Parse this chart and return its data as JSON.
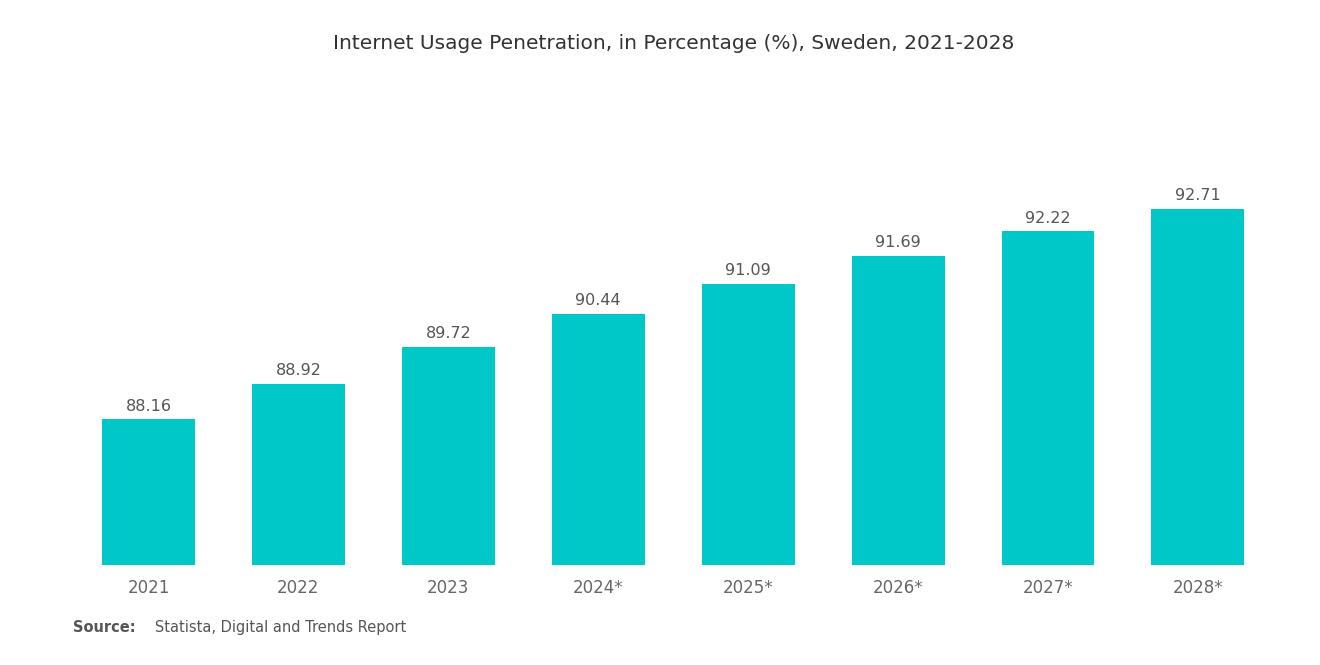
{
  "title": "Internet Usage Penetration, in Percentage (%), Sweden, 2021-2028",
  "categories": [
    "2021",
    "2022",
    "2023",
    "2024*",
    "2025*",
    "2026*",
    "2027*",
    "2028*"
  ],
  "values": [
    88.16,
    88.92,
    89.72,
    90.44,
    91.09,
    91.69,
    92.22,
    92.71
  ],
  "bar_color": "#00C8C8",
  "background_color": "#FFFFFF",
  "title_fontsize": 14.5,
  "label_fontsize": 11.5,
  "tick_fontsize": 12,
  "source_bold": "Source:",
  "source_normal": "   Statista, Digital and Trends Report",
  "ylim_min": 85,
  "ylim_max": 95.5,
  "bar_width": 0.62
}
